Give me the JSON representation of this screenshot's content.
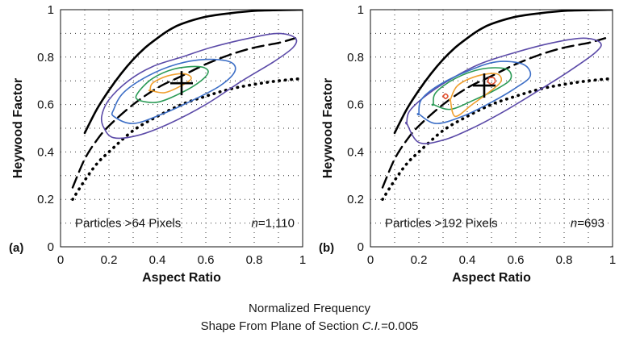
{
  "chart_data": [
    {
      "type": "scatter",
      "panel_label": "(a)",
      "xlabel": "Aspect Ratio",
      "ylabel": "Heywood Factor",
      "xlim": [
        0,
        1
      ],
      "ylim": [
        0,
        1
      ],
      "x_ticks": [
        "0",
        "0.2",
        "0.4",
        "0.6",
        "0.8",
        "1"
      ],
      "y_ticks": [
        "0",
        "0.2",
        "0.4",
        "0.6",
        "0.8",
        "1"
      ],
      "grid": "dotted",
      "annotation_left": "Particles >64 Pixels",
      "annotation_n_prefix": "n",
      "annotation_n_value": "=1,110",
      "marker": {
        "x": 0.5,
        "y": 0.69
      },
      "reference_curves": [
        {
          "style": "solid",
          "x": [
            0.1,
            0.15,
            0.2,
            0.25,
            0.3,
            0.35,
            0.4,
            0.45,
            0.5,
            0.6,
            0.7,
            0.8,
            0.9,
            1.0
          ],
          "y": [
            0.48,
            0.58,
            0.66,
            0.73,
            0.79,
            0.84,
            0.88,
            0.915,
            0.94,
            0.97,
            0.985,
            0.995,
            0.998,
            1.0
          ]
        },
        {
          "style": "dashed",
          "x": [
            0.05,
            0.1,
            0.15,
            0.2,
            0.3,
            0.4,
            0.5,
            0.6,
            0.7,
            0.8,
            0.9,
            0.97
          ],
          "y": [
            0.25,
            0.37,
            0.45,
            0.51,
            0.6,
            0.67,
            0.72,
            0.77,
            0.81,
            0.84,
            0.86,
            0.88
          ]
        },
        {
          "style": "dotted",
          "x": [
            0.05,
            0.1,
            0.15,
            0.2,
            0.3,
            0.4,
            0.5,
            0.6,
            0.7,
            0.8,
            0.9,
            1.0
          ],
          "y": [
            0.2,
            0.28,
            0.35,
            0.4,
            0.49,
            0.55,
            0.6,
            0.635,
            0.665,
            0.685,
            0.7,
            0.71
          ]
        }
      ],
      "contours": [
        {
          "color": "#5b4aa8",
          "x": [
            0.18,
            0.22,
            0.32,
            0.45,
            0.6,
            0.75,
            0.88,
            0.96,
            0.97,
            0.9,
            0.78,
            0.62,
            0.5,
            0.38,
            0.28,
            0.2,
            0.17
          ],
          "y": [
            0.5,
            0.46,
            0.47,
            0.52,
            0.6,
            0.7,
            0.78,
            0.84,
            0.88,
            0.9,
            0.88,
            0.84,
            0.8,
            0.76,
            0.7,
            0.62,
            0.55
          ]
        },
        {
          "color": "#3c6ec6",
          "x": [
            0.22,
            0.3,
            0.42,
            0.55,
            0.66,
            0.72,
            0.7,
            0.6,
            0.48,
            0.36,
            0.26,
            0.22
          ],
          "y": [
            0.55,
            0.52,
            0.56,
            0.62,
            0.68,
            0.74,
            0.78,
            0.79,
            0.77,
            0.72,
            0.65,
            0.58
          ]
        },
        {
          "color": "#2a9a55",
          "x": [
            0.32,
            0.4,
            0.5,
            0.58,
            0.61,
            0.57,
            0.47,
            0.38,
            0.32
          ],
          "y": [
            0.62,
            0.61,
            0.65,
            0.7,
            0.74,
            0.76,
            0.75,
            0.71,
            0.65
          ]
        },
        {
          "color": "#f0a030",
          "x": [
            0.37,
            0.43,
            0.5,
            0.54,
            0.51,
            0.44,
            0.38,
            0.37
          ],
          "y": [
            0.66,
            0.65,
            0.68,
            0.71,
            0.73,
            0.72,
            0.69,
            0.66
          ]
        }
      ]
    },
    {
      "type": "scatter",
      "panel_label": "(b)",
      "xlabel": "Aspect Ratio",
      "ylabel": "Heywood Factor",
      "xlim": [
        0,
        1
      ],
      "ylim": [
        0,
        1
      ],
      "x_ticks": [
        "0",
        "0.2",
        "0.4",
        "0.6",
        "0.8",
        "1"
      ],
      "y_ticks": [
        "0",
        "0.2",
        "0.4",
        "0.6",
        "0.8",
        "1"
      ],
      "grid": "dotted",
      "annotation_left": "Particles >192 Pixels",
      "annotation_n_prefix": "n",
      "annotation_n_value": "=693",
      "marker": {
        "x": 0.47,
        "y": 0.68
      },
      "reference_curves": [
        {
          "style": "solid",
          "x": [
            0.1,
            0.15,
            0.2,
            0.25,
            0.3,
            0.35,
            0.4,
            0.45,
            0.5,
            0.6,
            0.7,
            0.8,
            0.9,
            1.0
          ],
          "y": [
            0.48,
            0.58,
            0.66,
            0.73,
            0.79,
            0.84,
            0.88,
            0.915,
            0.94,
            0.97,
            0.985,
            0.995,
            0.998,
            1.0
          ]
        },
        {
          "style": "dashed",
          "x": [
            0.05,
            0.1,
            0.15,
            0.2,
            0.3,
            0.4,
            0.5,
            0.6,
            0.7,
            0.8,
            0.9,
            0.97
          ],
          "y": [
            0.25,
            0.37,
            0.45,
            0.51,
            0.6,
            0.67,
            0.72,
            0.77,
            0.81,
            0.84,
            0.86,
            0.88
          ]
        },
        {
          "style": "dotted",
          "x": [
            0.05,
            0.1,
            0.15,
            0.2,
            0.3,
            0.4,
            0.5,
            0.6,
            0.7,
            0.8,
            0.9,
            1.0
          ],
          "y": [
            0.2,
            0.28,
            0.35,
            0.4,
            0.49,
            0.55,
            0.6,
            0.635,
            0.665,
            0.685,
            0.7,
            0.71
          ]
        }
      ],
      "contours": [
        {
          "color": "#5b4aa8",
          "x": [
            0.15,
            0.2,
            0.3,
            0.42,
            0.55,
            0.68,
            0.82,
            0.93,
            0.95,
            0.88,
            0.75,
            0.6,
            0.45,
            0.32,
            0.22,
            0.16,
            0.15
          ],
          "y": [
            0.52,
            0.44,
            0.45,
            0.5,
            0.57,
            0.65,
            0.74,
            0.82,
            0.86,
            0.88,
            0.86,
            0.82,
            0.77,
            0.7,
            0.63,
            0.57,
            0.52
          ]
        },
        {
          "color": "#3c6ec6",
          "x": [
            0.2,
            0.27,
            0.38,
            0.5,
            0.6,
            0.66,
            0.63,
            0.52,
            0.4,
            0.28,
            0.21,
            0.2
          ],
          "y": [
            0.56,
            0.52,
            0.55,
            0.61,
            0.67,
            0.72,
            0.77,
            0.78,
            0.74,
            0.68,
            0.62,
            0.56
          ]
        },
        {
          "color": "#2a9a55",
          "x": [
            0.26,
            0.33,
            0.43,
            0.53,
            0.58,
            0.56,
            0.46,
            0.35,
            0.27,
            0.26
          ],
          "y": [
            0.6,
            0.58,
            0.62,
            0.67,
            0.71,
            0.75,
            0.75,
            0.71,
            0.65,
            0.6
          ]
        },
        {
          "color": "#f0a030",
          "x": [
            0.33,
            0.35,
            0.42,
            0.5,
            0.54,
            0.52,
            0.44,
            0.36,
            0.33
          ],
          "y": [
            0.62,
            0.55,
            0.6,
            0.66,
            0.7,
            0.73,
            0.72,
            0.68,
            0.62
          ]
        },
        {
          "color": "#e05030",
          "x": [
            0.485,
            0.5,
            0.515,
            0.51,
            0.49,
            0.485
          ],
          "y": [
            0.695,
            0.685,
            0.695,
            0.712,
            0.712,
            0.695
          ]
        },
        {
          "color": "#e05030",
          "x": [
            0.3,
            0.31,
            0.32,
            0.31,
            0.3
          ],
          "y": [
            0.635,
            0.625,
            0.635,
            0.645,
            0.635
          ]
        }
      ]
    }
  ],
  "caption": {
    "line1": "Normalized Frequency",
    "line2_prefix": "Shape From Plane of Section ",
    "line2_italic": "C.I.",
    "line2_value": "=0.005"
  }
}
